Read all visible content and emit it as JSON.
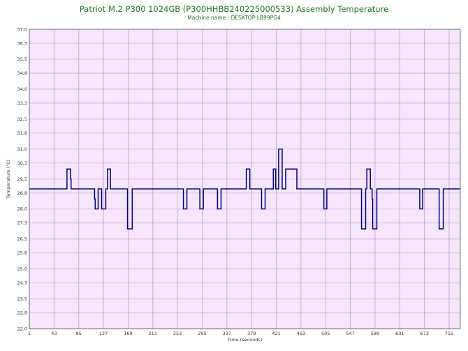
{
  "chart_data": {
    "type": "line",
    "title": "Patriot M.2 P300 1024GB (P300HHBB240225000533) Assembly Temperature",
    "subtitle": "Machine name : DESKTOP-LB99PG4",
    "xlabel": "Time (seconds)",
    "ylabel": "Temperature (°C)",
    "xlim": [
      1,
      734
    ],
    "ylim": [
      22.0,
      37.0
    ],
    "y_ticks": [
      "37.0",
      "36.3",
      "35.5",
      "34.8",
      "34.0",
      "33.3",
      "32.5",
      "31.8",
      "31.0",
      "30.3",
      "29.5",
      "28.8",
      "28.0",
      "27.3",
      "26.5",
      "25.8",
      "25.0",
      "24.3",
      "23.5",
      "22.8",
      "22.0"
    ],
    "x_ticks": [
      "1",
      "43",
      "85",
      "127",
      "169",
      "211",
      "253",
      "295",
      "337",
      "379",
      "421",
      "463",
      "505",
      "547",
      "589",
      "631",
      "673",
      "715"
    ],
    "grid": true,
    "background": "#f5e6fb",
    "grid_color": "#c8a0d8",
    "line_color": "#000080",
    "series": [
      {
        "name": "",
        "points": [
          [
            1,
            29.0
          ],
          [
            65,
            29.0
          ],
          [
            65,
            30.0
          ],
          [
            71,
            30.0
          ],
          [
            71,
            29.5
          ],
          [
            72,
            29.5
          ],
          [
            72,
            29.0
          ],
          [
            112,
            29.0
          ],
          [
            112,
            28.5
          ],
          [
            113,
            28.5
          ],
          [
            113,
            28.0
          ],
          [
            118,
            28.0
          ],
          [
            118,
            29.0
          ],
          [
            124,
            29.0
          ],
          [
            124,
            28.0
          ],
          [
            131,
            28.0
          ],
          [
            131,
            29.0
          ],
          [
            134,
            29.0
          ],
          [
            134,
            30.0
          ],
          [
            139,
            30.0
          ],
          [
            139,
            29.0
          ],
          [
            168,
            29.0
          ],
          [
            168,
            27.0
          ],
          [
            176,
            27.0
          ],
          [
            176,
            29.0
          ],
          [
            263,
            29.0
          ],
          [
            263,
            28.0
          ],
          [
            269,
            28.0
          ],
          [
            269,
            29.0
          ],
          [
            291,
            29.0
          ],
          [
            291,
            28.0
          ],
          [
            297,
            28.0
          ],
          [
            297,
            29.0
          ],
          [
            321,
            29.0
          ],
          [
            321,
            28.0
          ],
          [
            327,
            28.0
          ],
          [
            327,
            29.0
          ],
          [
            370,
            29.0
          ],
          [
            370,
            30.0
          ],
          [
            376,
            30.0
          ],
          [
            376,
            29.0
          ],
          [
            396,
            29.0
          ],
          [
            396,
            28.0
          ],
          [
            402,
            28.0
          ],
          [
            402,
            29.0
          ],
          [
            416,
            29.0
          ],
          [
            416,
            30.0
          ],
          [
            420,
            30.0
          ],
          [
            420,
            29.0
          ],
          [
            425,
            29.0
          ],
          [
            425,
            31.0
          ],
          [
            431,
            31.0
          ],
          [
            431,
            29.0
          ],
          [
            437,
            29.0
          ],
          [
            437,
            30.0
          ],
          [
            456,
            30.0
          ],
          [
            456,
            29.0
          ],
          [
            502,
            29.0
          ],
          [
            502,
            28.0
          ],
          [
            507,
            28.0
          ],
          [
            507,
            29.0
          ],
          [
            566,
            29.0
          ],
          [
            566,
            27.0
          ],
          [
            573,
            27.0
          ],
          [
            573,
            29.0
          ],
          [
            575,
            29.0
          ],
          [
            575,
            30.0
          ],
          [
            581,
            30.0
          ],
          [
            581,
            29.0
          ],
          [
            584,
            29.0
          ],
          [
            584,
            28.5
          ],
          [
            585,
            28.5
          ],
          [
            585,
            27.0
          ],
          [
            592,
            27.0
          ],
          [
            592,
            29.0
          ],
          [
            665,
            29.0
          ],
          [
            665,
            28.0
          ],
          [
            670,
            28.0
          ],
          [
            670,
            29.0
          ],
          [
            698,
            29.0
          ],
          [
            698,
            27.0
          ],
          [
            705,
            27.0
          ],
          [
            705,
            29.0
          ],
          [
            734,
            29.0
          ]
        ]
      }
    ]
  }
}
